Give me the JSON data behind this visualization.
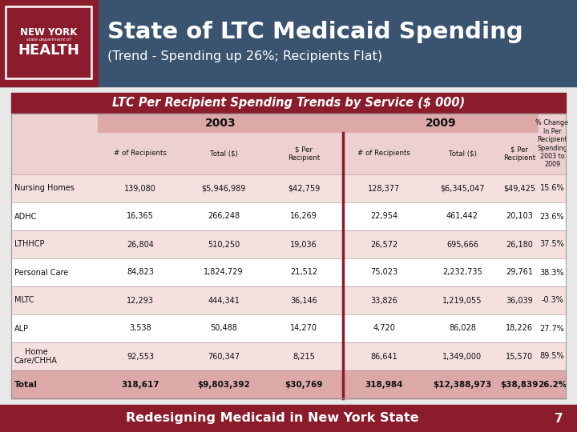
{
  "title": "State of LTC Medicaid Spending",
  "subtitle": "(Trend - Spending up 26%; Recipients Flat)",
  "table_title": "LTC Per Recipient Spending Trends by Service ($ 000)",
  "col_headers_sub": [
    "# of Recipients",
    "Total ($)",
    "$ Per\nRecipient",
    "# of Recipients",
    "Total ($)",
    "$ Per\nRecipient",
    "% Change\nIn Per\nRecipient\nSpending\n2003 to\n2009"
  ],
  "rows": [
    [
      "Nursing Homes",
      "139,080",
      "$5,946,989",
      "$42,759",
      "128,377",
      "$6,345,047",
      "$49,425",
      "15.6%"
    ],
    [
      "ADHC",
      "16,365",
      "266,248",
      "16,269",
      "22,954",
      "461,442",
      "20,103",
      "23.6%"
    ],
    [
      "LTHHCP",
      "26,804",
      "510,250",
      "19,036",
      "26,572",
      "695,666",
      "26,180",
      "37.5%"
    ],
    [
      "Personal Care",
      "84,823",
      "1,824,729",
      "21,512",
      "75,023",
      "2,232,735",
      "29,761",
      "38.3%"
    ],
    [
      "MLTC",
      "12,293",
      "444,341",
      "36,146",
      "33,826",
      "1,219,055",
      "36,039",
      "-0.3%"
    ],
    [
      "ALP",
      "3,538",
      "50,488",
      "14,270",
      "4,720",
      "86,028",
      "18,226",
      "27.7%"
    ],
    [
      "Home\nCare/CHHA",
      "92,553",
      "760,347",
      "8,215",
      "86,641",
      "1,349,000",
      "15,570",
      "89.5%"
    ],
    [
      "Total",
      "318,617",
      "$9,803,392",
      "$30,769",
      "318,984",
      "$12,388,973",
      "$38,839",
      "26.2%"
    ]
  ],
  "footer": "Redesigning Medicaid in New York State",
  "page_num": "7",
  "colors": {
    "header_bg": "#3a5470",
    "title_text": "#ffffff",
    "table_title_bg": "#8b1c2c",
    "table_title_text": "#ffffff",
    "year_header_bg": "#dda8a8",
    "subheader_bg": "#edd0d0",
    "row_odd_bg": "#f5e0e0",
    "row_even_bg": "#ffffff",
    "total_row_bg": "#dda8a8",
    "divider_line": "#8b1c2c",
    "footer_bg": "#8b1c2c",
    "footer_text": "#ffffff",
    "logo_bg": "#8b1c2c",
    "slide_bg": "#e8e8e8",
    "border_color": "#bbbbbb"
  }
}
